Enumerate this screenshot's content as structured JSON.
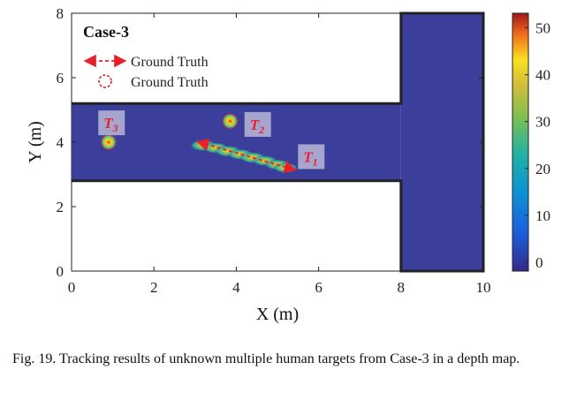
{
  "chart_data": {
    "type": "heatmap",
    "title": "Case-3",
    "xlabel": "X (m)",
    "ylabel": "Y (m)",
    "xlim": [
      0,
      10
    ],
    "ylim": [
      0,
      8
    ],
    "xticks": [
      "0",
      "2",
      "4",
      "6",
      "8",
      "10"
    ],
    "yticks": [
      "0",
      "2",
      "4",
      "6",
      "8"
    ],
    "colorbar": {
      "range": [
        0,
        55
      ],
      "ticks": [
        "0",
        "10",
        "20",
        "30",
        "40",
        "50"
      ]
    },
    "region": {
      "corridor": {
        "x": [
          0,
          8
        ],
        "y": [
          2.8,
          5.2
        ]
      },
      "vertical_hall": {
        "x": [
          8,
          10
        ],
        "y": [
          0,
          8
        ]
      }
    },
    "legend": [
      {
        "symbol": "dashed-arrow",
        "label": "Ground Truth"
      },
      {
        "symbol": "dashed-circle",
        "label": "Ground Truth"
      }
    ],
    "targets": [
      {
        "label": "T",
        "sub": "1",
        "kind": "moving",
        "start": [
          3.1,
          4.0
        ],
        "end": [
          5.4,
          3.15
        ],
        "label_pos": [
          5.8,
          3.55
        ]
      },
      {
        "label": "T",
        "sub": "2",
        "kind": "static",
        "pos": [
          3.85,
          4.65
        ],
        "label_pos": [
          4.5,
          4.55
        ]
      },
      {
        "label": "T",
        "sub": "3",
        "kind": "static",
        "pos": [
          0.9,
          4.0
        ],
        "label_pos": [
          0.95,
          4.6
        ]
      }
    ],
    "heat_track": [
      [
        3.2,
        3.9,
        38
      ],
      [
        3.5,
        3.82,
        32
      ],
      [
        3.8,
        3.72,
        36
      ],
      [
        4.1,
        3.62,
        30
      ],
      [
        4.4,
        3.52,
        34
      ],
      [
        4.7,
        3.42,
        28
      ],
      [
        5.0,
        3.3,
        30
      ],
      [
        5.2,
        3.2,
        26
      ]
    ]
  },
  "caption": "Fig. 19.  Tracking results of unknown multiple human targets from Case-3 in a depth map."
}
